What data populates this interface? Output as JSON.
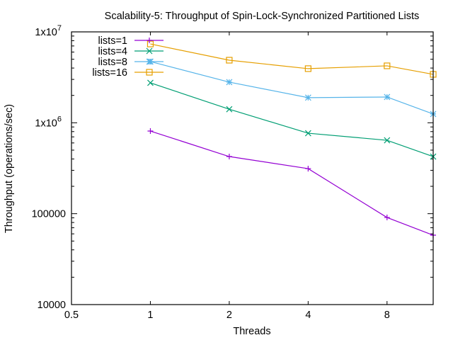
{
  "chart_data": {
    "type": "line",
    "title": "Scalability-5: Throughput of Spin-Lock-Synchronized Partitioned Lists",
    "xlabel": "Threads",
    "ylabel": "Throughput (operations/sec)",
    "xscale": "log2",
    "yscale": "log10",
    "xlim": [
      0.5,
      12
    ],
    "ylim": [
      10000,
      10000000
    ],
    "grid": false,
    "legend_position": "top-left",
    "x_ticks": [
      {
        "value": 0.5,
        "label": "0.5"
      },
      {
        "value": 1,
        "label": "1"
      },
      {
        "value": 2,
        "label": "2"
      },
      {
        "value": 4,
        "label": "4"
      },
      {
        "value": 8,
        "label": "8"
      }
    ],
    "y_ticks": [
      {
        "value": 10000,
        "label": "10000",
        "base": "",
        "exp": ""
      },
      {
        "value": 100000,
        "label": "100000",
        "base": "",
        "exp": ""
      },
      {
        "value": 1000000,
        "label": "",
        "base": "1x10",
        "exp": "6"
      },
      {
        "value": 10000000,
        "label": "",
        "base": "1x10",
        "exp": "7"
      }
    ],
    "x": [
      1,
      2,
      4,
      8,
      12
    ],
    "series": [
      {
        "name": "lists=1",
        "color": "#9400d3",
        "marker": "plus",
        "values": [
          811000,
          425000,
          313000,
          90800,
          58000
        ]
      },
      {
        "name": "lists=4",
        "color": "#009e73",
        "marker": "cross",
        "values": [
          2750000,
          1410000,
          768000,
          642000,
          425000
        ]
      },
      {
        "name": "lists=8",
        "color": "#56b4e9",
        "marker": "star",
        "values": [
          4710000,
          2800000,
          1890000,
          1920000,
          1250000
        ]
      },
      {
        "name": "lists=16",
        "color": "#e69f00",
        "marker": "square",
        "values": [
          7360000,
          4880000,
          3940000,
          4230000,
          3410000
        ]
      }
    ]
  }
}
